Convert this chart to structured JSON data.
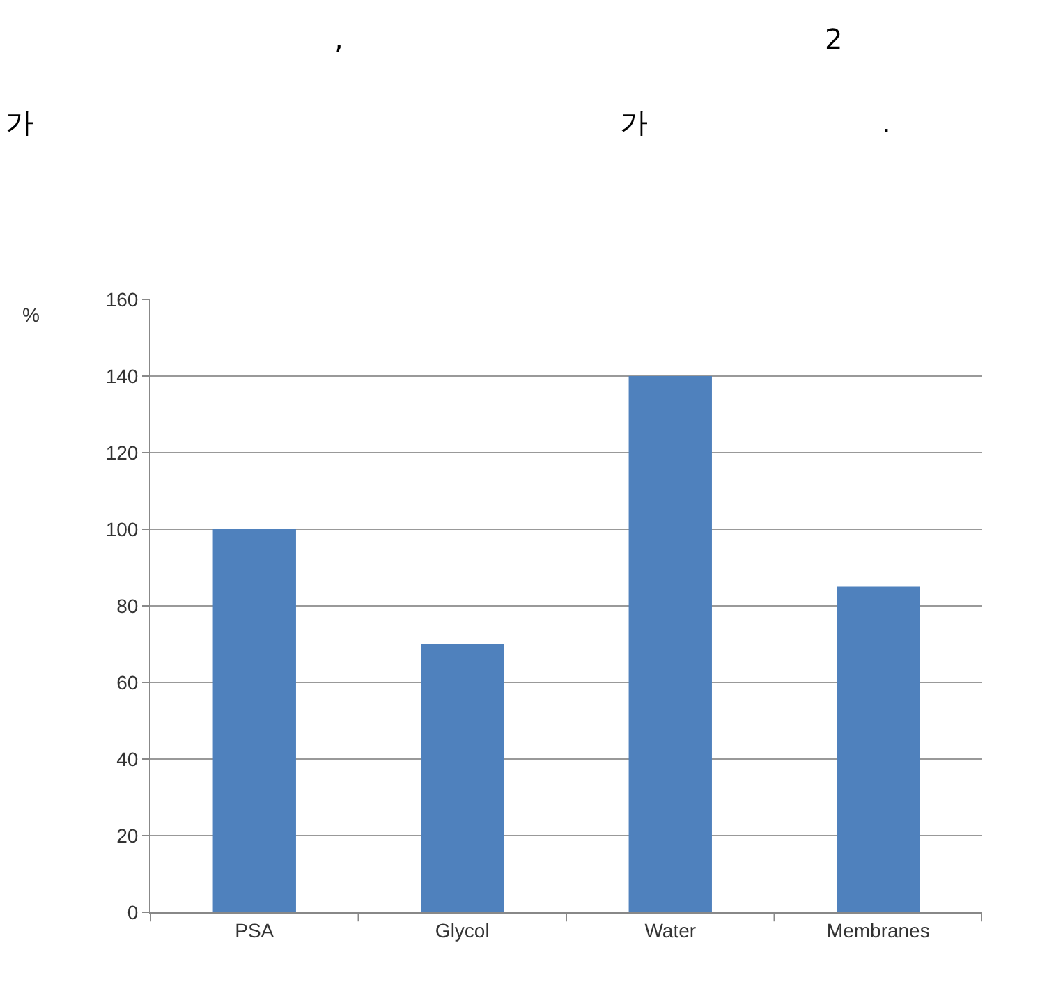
{
  "chart_data": {
    "type": "bar",
    "ylabel": "%",
    "annotations": [
      ",",
      "2",
      "가",
      "가",
      "."
    ],
    "categories": [
      "PSA",
      "Glycol",
      "Water",
      "Membranes"
    ],
    "values": [
      100,
      70,
      140,
      85
    ],
    "color": "#4f81bd",
    "ylim": [
      0,
      160
    ],
    "yticks": [
      0,
      20,
      40,
      60,
      80,
      100,
      120,
      140,
      160
    ],
    "grid": "y"
  }
}
